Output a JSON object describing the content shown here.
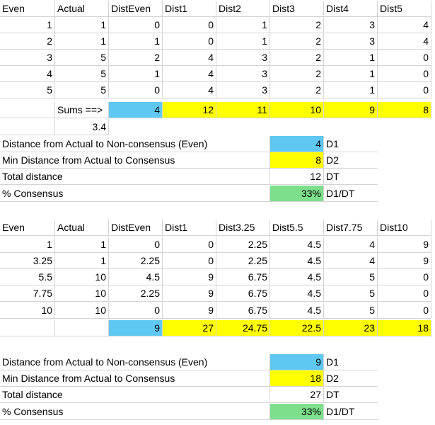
{
  "table1": {
    "headers": [
      "Even",
      "Actual",
      "DistEven",
      "Dist1",
      "Dist2",
      "Dist3",
      "Dist4",
      "Dist5"
    ],
    "rows": [
      [
        "1",
        "1",
        "0",
        "0",
        "1",
        "2",
        "3",
        "4"
      ],
      [
        "2",
        "1",
        "1",
        "0",
        "1",
        "2",
        "3",
        "4"
      ],
      [
        "3",
        "5",
        "2",
        "4",
        "3",
        "2",
        "1",
        "0"
      ],
      [
        "4",
        "5",
        "1",
        "4",
        "3",
        "2",
        "1",
        "0"
      ],
      [
        "5",
        "5",
        "0",
        "4",
        "3",
        "2",
        "1",
        "0"
      ]
    ],
    "sums_label": "Sums ==>",
    "sums": [
      "4",
      "12",
      "11",
      "10",
      "9",
      "8"
    ],
    "avg": "3.4",
    "summary": [
      {
        "label": "Distance from Actual to Non-consensus (Even)",
        "value": "4",
        "tag": "D1"
      },
      {
        "label": "Min Distance from Actual to Consensus",
        "value": "8",
        "tag": "D2"
      },
      {
        "label": "Total distance",
        "value": "12",
        "tag": "DT"
      },
      {
        "label": "% Consensus",
        "value": "33%",
        "tag": "D1/DT"
      }
    ]
  },
  "table2": {
    "headers": [
      "Even",
      "Actual",
      "DistEven",
      "Dist1",
      "Dist3.25",
      "Dist5.5",
      "Dist7.75",
      "Dist10"
    ],
    "rows": [
      [
        "1",
        "1",
        "0",
        "0",
        "2.25",
        "4.5",
        "4",
        "9"
      ],
      [
        "3.25",
        "1",
        "2.25",
        "0",
        "2.25",
        "4.5",
        "4",
        "9"
      ],
      [
        "5.5",
        "10",
        "4.5",
        "9",
        "6.75",
        "4.5",
        "5",
        "0"
      ],
      [
        "7.75",
        "10",
        "2.25",
        "9",
        "6.75",
        "4.5",
        "5",
        "0"
      ],
      [
        "10",
        "10",
        "0",
        "9",
        "6.75",
        "4.5",
        "5",
        "0"
      ]
    ],
    "sums": [
      "9",
      "27",
      "24.75",
      "22.5",
      "23",
      "18"
    ],
    "summary": [
      {
        "label": "Distance from Actual to Non-consensus (Even)",
        "value": "9",
        "tag": "D1"
      },
      {
        "label": "Min Distance from Actual to Consensus",
        "value": "18",
        "tag": "D2"
      },
      {
        "label": "Total distance",
        "value": "27",
        "tag": "DT"
      },
      {
        "label": "% Consensus",
        "value": "33%",
        "tag": "D1/DT"
      }
    ]
  },
  "colors": {
    "distance_even": "#5ec8f2",
    "distance_consensus": "#ffff00",
    "percent_consensus": "#7ddf8c",
    "gridline": "#d4d4d4"
  }
}
